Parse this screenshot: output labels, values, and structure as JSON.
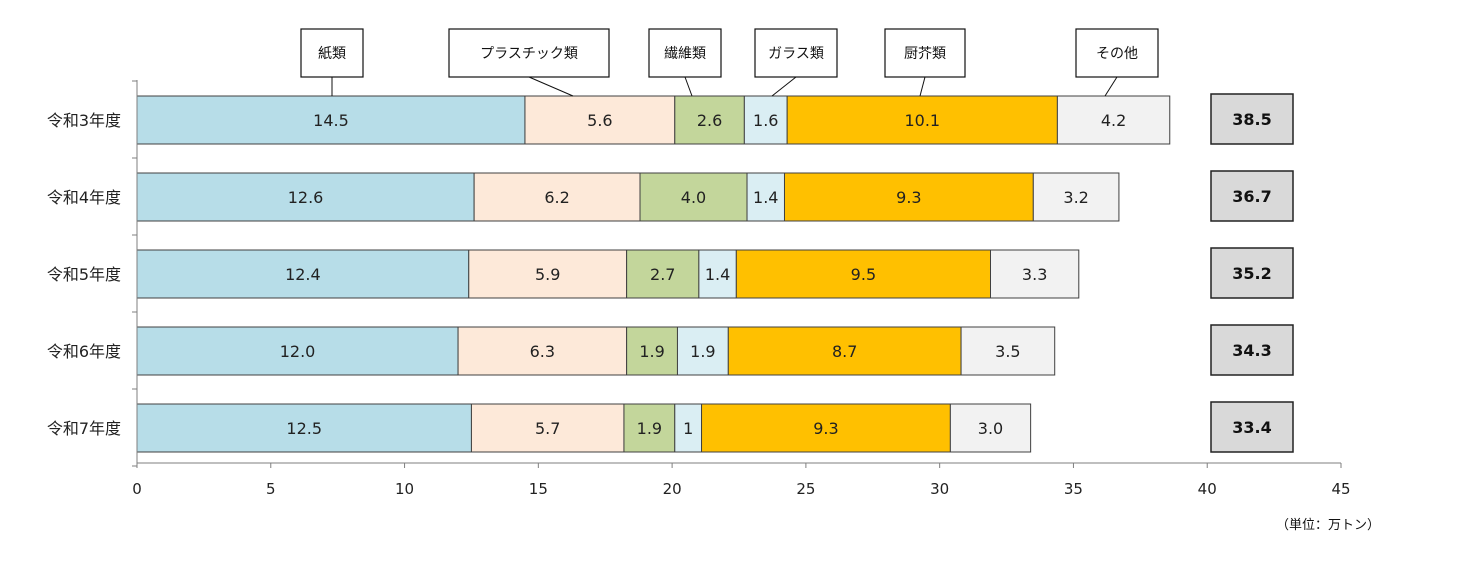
{
  "chart_data": {
    "type": "bar",
    "orientation": "horizontal",
    "stacked": true,
    "categories": [
      "令和3年度",
      "令和4年度",
      "令和5年度",
      "令和6年度",
      "令和7年度"
    ],
    "series": [
      {
        "name": "紙類",
        "color": "#b7dde8",
        "values": [
          14.5,
          12.6,
          12.4,
          12.0,
          12.5
        ],
        "labels": [
          "14.5",
          "12.6",
          "12.4",
          "12.0",
          "12.5"
        ]
      },
      {
        "name": "プラスチック類",
        "color": "#fde9d9",
        "values": [
          5.6,
          6.2,
          5.9,
          6.3,
          5.7
        ],
        "labels": [
          "5.6",
          "6.2",
          "5.9",
          "6.3",
          "5.7"
        ]
      },
      {
        "name": "繊維類",
        "color": "#c3d69b",
        "values": [
          2.6,
          4.0,
          2.7,
          1.9,
          1.9
        ],
        "labels": [
          "2.6",
          "4.0",
          "2.7",
          "1.9",
          "1.9"
        ]
      },
      {
        "name": "ガラス類",
        "color": "#daeef3",
        "values": [
          1.6,
          1.4,
          1.4,
          1.9,
          1.0
        ],
        "labels": [
          "1.6",
          "1.4",
          "1.4",
          "1.9",
          "1"
        ]
      },
      {
        "name": "厨芥類",
        "color": "#ffc000",
        "values": [
          10.1,
          9.3,
          9.5,
          8.7,
          9.3
        ],
        "labels": [
          "10.1",
          "9.3",
          "9.5",
          "8.7",
          "9.3"
        ]
      },
      {
        "name": "その他",
        "color": "#f2f2f2",
        "values": [
          4.2,
          3.2,
          3.3,
          3.5,
          3.0
        ],
        "labels": [
          "4.2",
          "3.2",
          "3.3",
          "3.5",
          "3.0"
        ]
      }
    ],
    "totals": [
      "38.5",
      "36.7",
      "35.2",
      "34.3",
      "33.4"
    ],
    "xlim": [
      0,
      45
    ],
    "xticks": [
      0,
      5,
      10,
      15,
      20,
      25,
      30,
      35,
      40,
      45
    ],
    "unit_label": "（単位：万トン）",
    "grid": false,
    "legend": "top, callouts above first bar"
  }
}
